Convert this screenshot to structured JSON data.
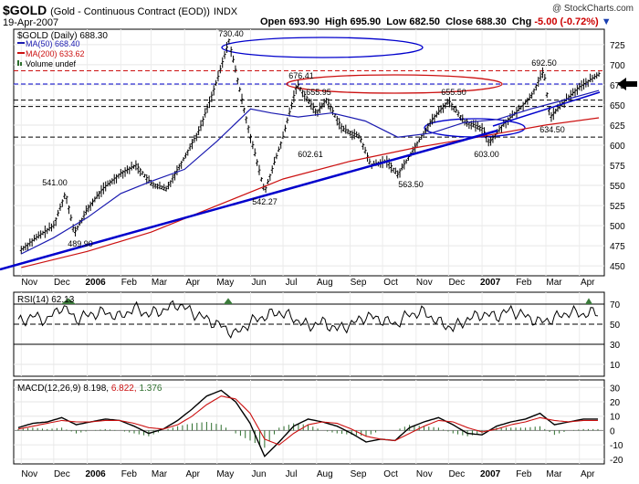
{
  "header": {
    "symbol": "$GOLD",
    "name": "(Gold - Continuous Contract (EOD))",
    "exchange": "INDX",
    "date": "19-Apr-2007",
    "open_label": "Open",
    "open": "693.90",
    "high_label": "High",
    "high": "695.90",
    "low_label": "Low",
    "low": "682.50",
    "close_label": "Close",
    "close": "688.30",
    "chg_label": "Chg",
    "chg": "-5.00 (-0.72%)",
    "brand": "@ StockCharts.com"
  },
  "legend": {
    "price": "$GOLD (Daily) 688.30",
    "ma50": "MA(50) 668.40",
    "ma200": "MA(200) 633.62",
    "volume": "Volume undef"
  },
  "rsi_label": "RSI(14) 62.13",
  "macd_label": {
    "name": "MACD(12,26,9)",
    "macd": "8.198,",
    "signal": "6.822,",
    "hist": "1.376"
  },
  "colors": {
    "ma50": "#1a1ab0",
    "ma200": "#cc1111",
    "trend": "#0000cc",
    "rsi_fill": "#3a7a3a",
    "hist": "#2d6e2d"
  },
  "chart_data": [
    {
      "type": "line",
      "title": "$GOLD (Daily) 688.30",
      "ylim": [
        440,
        735
      ],
      "y_ticks": [
        450,
        475,
        500,
        525,
        550,
        575,
        600,
        625,
        650,
        675,
        700,
        725
      ],
      "x_labels": [
        "Nov",
        "Dec",
        "2006",
        "Feb",
        "Mar",
        "Apr",
        "May",
        "Jun",
        "Jul",
        "Aug",
        "Sep",
        "Oct",
        "Nov",
        "Dec",
        "2007",
        "Feb",
        "Mar",
        "Apr"
      ],
      "series": [
        {
          "name": "$GOLD",
          "x": [
            "2005-11-01",
            "2005-11-15",
            "2005-12-01",
            "2005-12-12",
            "2005-12-20",
            "2006-01-01",
            "2006-01-15",
            "2006-02-01",
            "2006-02-15",
            "2006-03-01",
            "2006-03-15",
            "2006-04-01",
            "2006-04-15",
            "2006-05-01",
            "2006-05-12",
            "2006-05-25",
            "2006-06-01",
            "2006-06-14",
            "2006-07-01",
            "2006-07-14",
            "2006-08-01",
            "2006-08-10",
            "2006-08-25",
            "2006-09-10",
            "2006-09-20",
            "2006-10-05",
            "2006-10-15",
            "2006-11-01",
            "2006-11-15",
            "2006-12-01",
            "2006-12-15",
            "2007-01-01",
            "2007-01-08",
            "2007-01-20",
            "2007-02-01",
            "2007-02-15",
            "2007-02-27",
            "2007-03-05",
            "2007-03-15",
            "2007-04-01",
            "2007-04-19"
          ],
          "values": [
            470,
            485,
            500,
            541,
            490,
            520,
            545,
            565,
            575,
            552,
            545,
            585,
            620,
            680,
            730,
            650,
            610,
            542,
            610,
            676,
            640,
            656,
            620,
            610,
            575,
            580,
            563,
            600,
            630,
            655,
            630,
            620,
            603,
            625,
            640,
            660,
            692,
            634,
            650,
            672,
            688
          ]
        },
        {
          "name": "MA(50)",
          "x": [
            "2005-11-01",
            "2005-12-01",
            "2006-01-01",
            "2006-02-01",
            "2006-03-01",
            "2006-04-01",
            "2006-05-01",
            "2006-06-01",
            "2006-06-20",
            "2006-07-15",
            "2006-08-15",
            "2006-09-15",
            "2006-10-15",
            "2006-11-15",
            "2006-12-15",
            "2007-01-15",
            "2007-02-15",
            "2007-03-15",
            "2007-04-19"
          ],
          "values": [
            465,
            485,
            510,
            540,
            555,
            570,
            605,
            645,
            640,
            635,
            640,
            630,
            610,
            615,
            628,
            632,
            645,
            655,
            668
          ]
        },
        {
          "name": "MA(200)",
          "x": [
            "2005-11-01",
            "2006-01-01",
            "2006-03-01",
            "2006-05-01",
            "2006-07-01",
            "2006-09-01",
            "2006-11-01",
            "2007-01-01",
            "2007-03-01",
            "2007-04-19"
          ],
          "values": [
            448,
            468,
            492,
            525,
            558,
            580,
            597,
            611,
            625,
            634
          ]
        }
      ],
      "annotations": [
        "730.40",
        "676.41",
        "655.95",
        "655.50",
        "692.50",
        "541.00",
        "489.90",
        "542.27",
        "602.61",
        "563.50",
        "603.00",
        "634.50"
      ]
    },
    {
      "type": "line",
      "title": "RSI(14) 62.13",
      "ylim": [
        0,
        80
      ],
      "y_ticks": [
        10,
        30,
        50,
        70
      ],
      "series": [
        {
          "name": "RSI(14)",
          "values": [
            52,
            58,
            54,
            68,
            55,
            60,
            62,
            57,
            66,
            60,
            64,
            70,
            62,
            55,
            48,
            40,
            52,
            58,
            62,
            56,
            48,
            52,
            45,
            50,
            58,
            55,
            50,
            60,
            62,
            52,
            46,
            55,
            60,
            58,
            64,
            58,
            52,
            56,
            62,
            60,
            62
          ]
        }
      ]
    },
    {
      "type": "line",
      "title": "MACD(12,26,9) 8.198, 6.822, 1.376",
      "ylim": [
        -22,
        34
      ],
      "y_ticks": [
        -20,
        -10,
        0,
        10,
        20,
        30
      ],
      "series": [
        {
          "name": "MACD",
          "values": [
            2,
            5,
            6,
            9,
            4,
            6,
            8,
            7,
            3,
            -2,
            1,
            7,
            15,
            24,
            28,
            20,
            5,
            -18,
            -8,
            3,
            8,
            6,
            3,
            -2,
            -8,
            -6,
            -7,
            2,
            6,
            9,
            4,
            -2,
            -3,
            3,
            6,
            8,
            12,
            4,
            6,
            8,
            8
          ]
        },
        {
          "name": "Signal",
          "values": [
            1,
            3,
            5,
            7,
            6,
            6,
            7,
            7,
            5,
            2,
            1,
            4,
            10,
            18,
            24,
            22,
            12,
            -6,
            -10,
            -2,
            4,
            6,
            5,
            1,
            -4,
            -6,
            -7,
            -2,
            3,
            7,
            6,
            2,
            -1,
            1,
            4,
            6,
            9,
            7,
            6,
            7,
            7
          ]
        }
      ]
    }
  ]
}
